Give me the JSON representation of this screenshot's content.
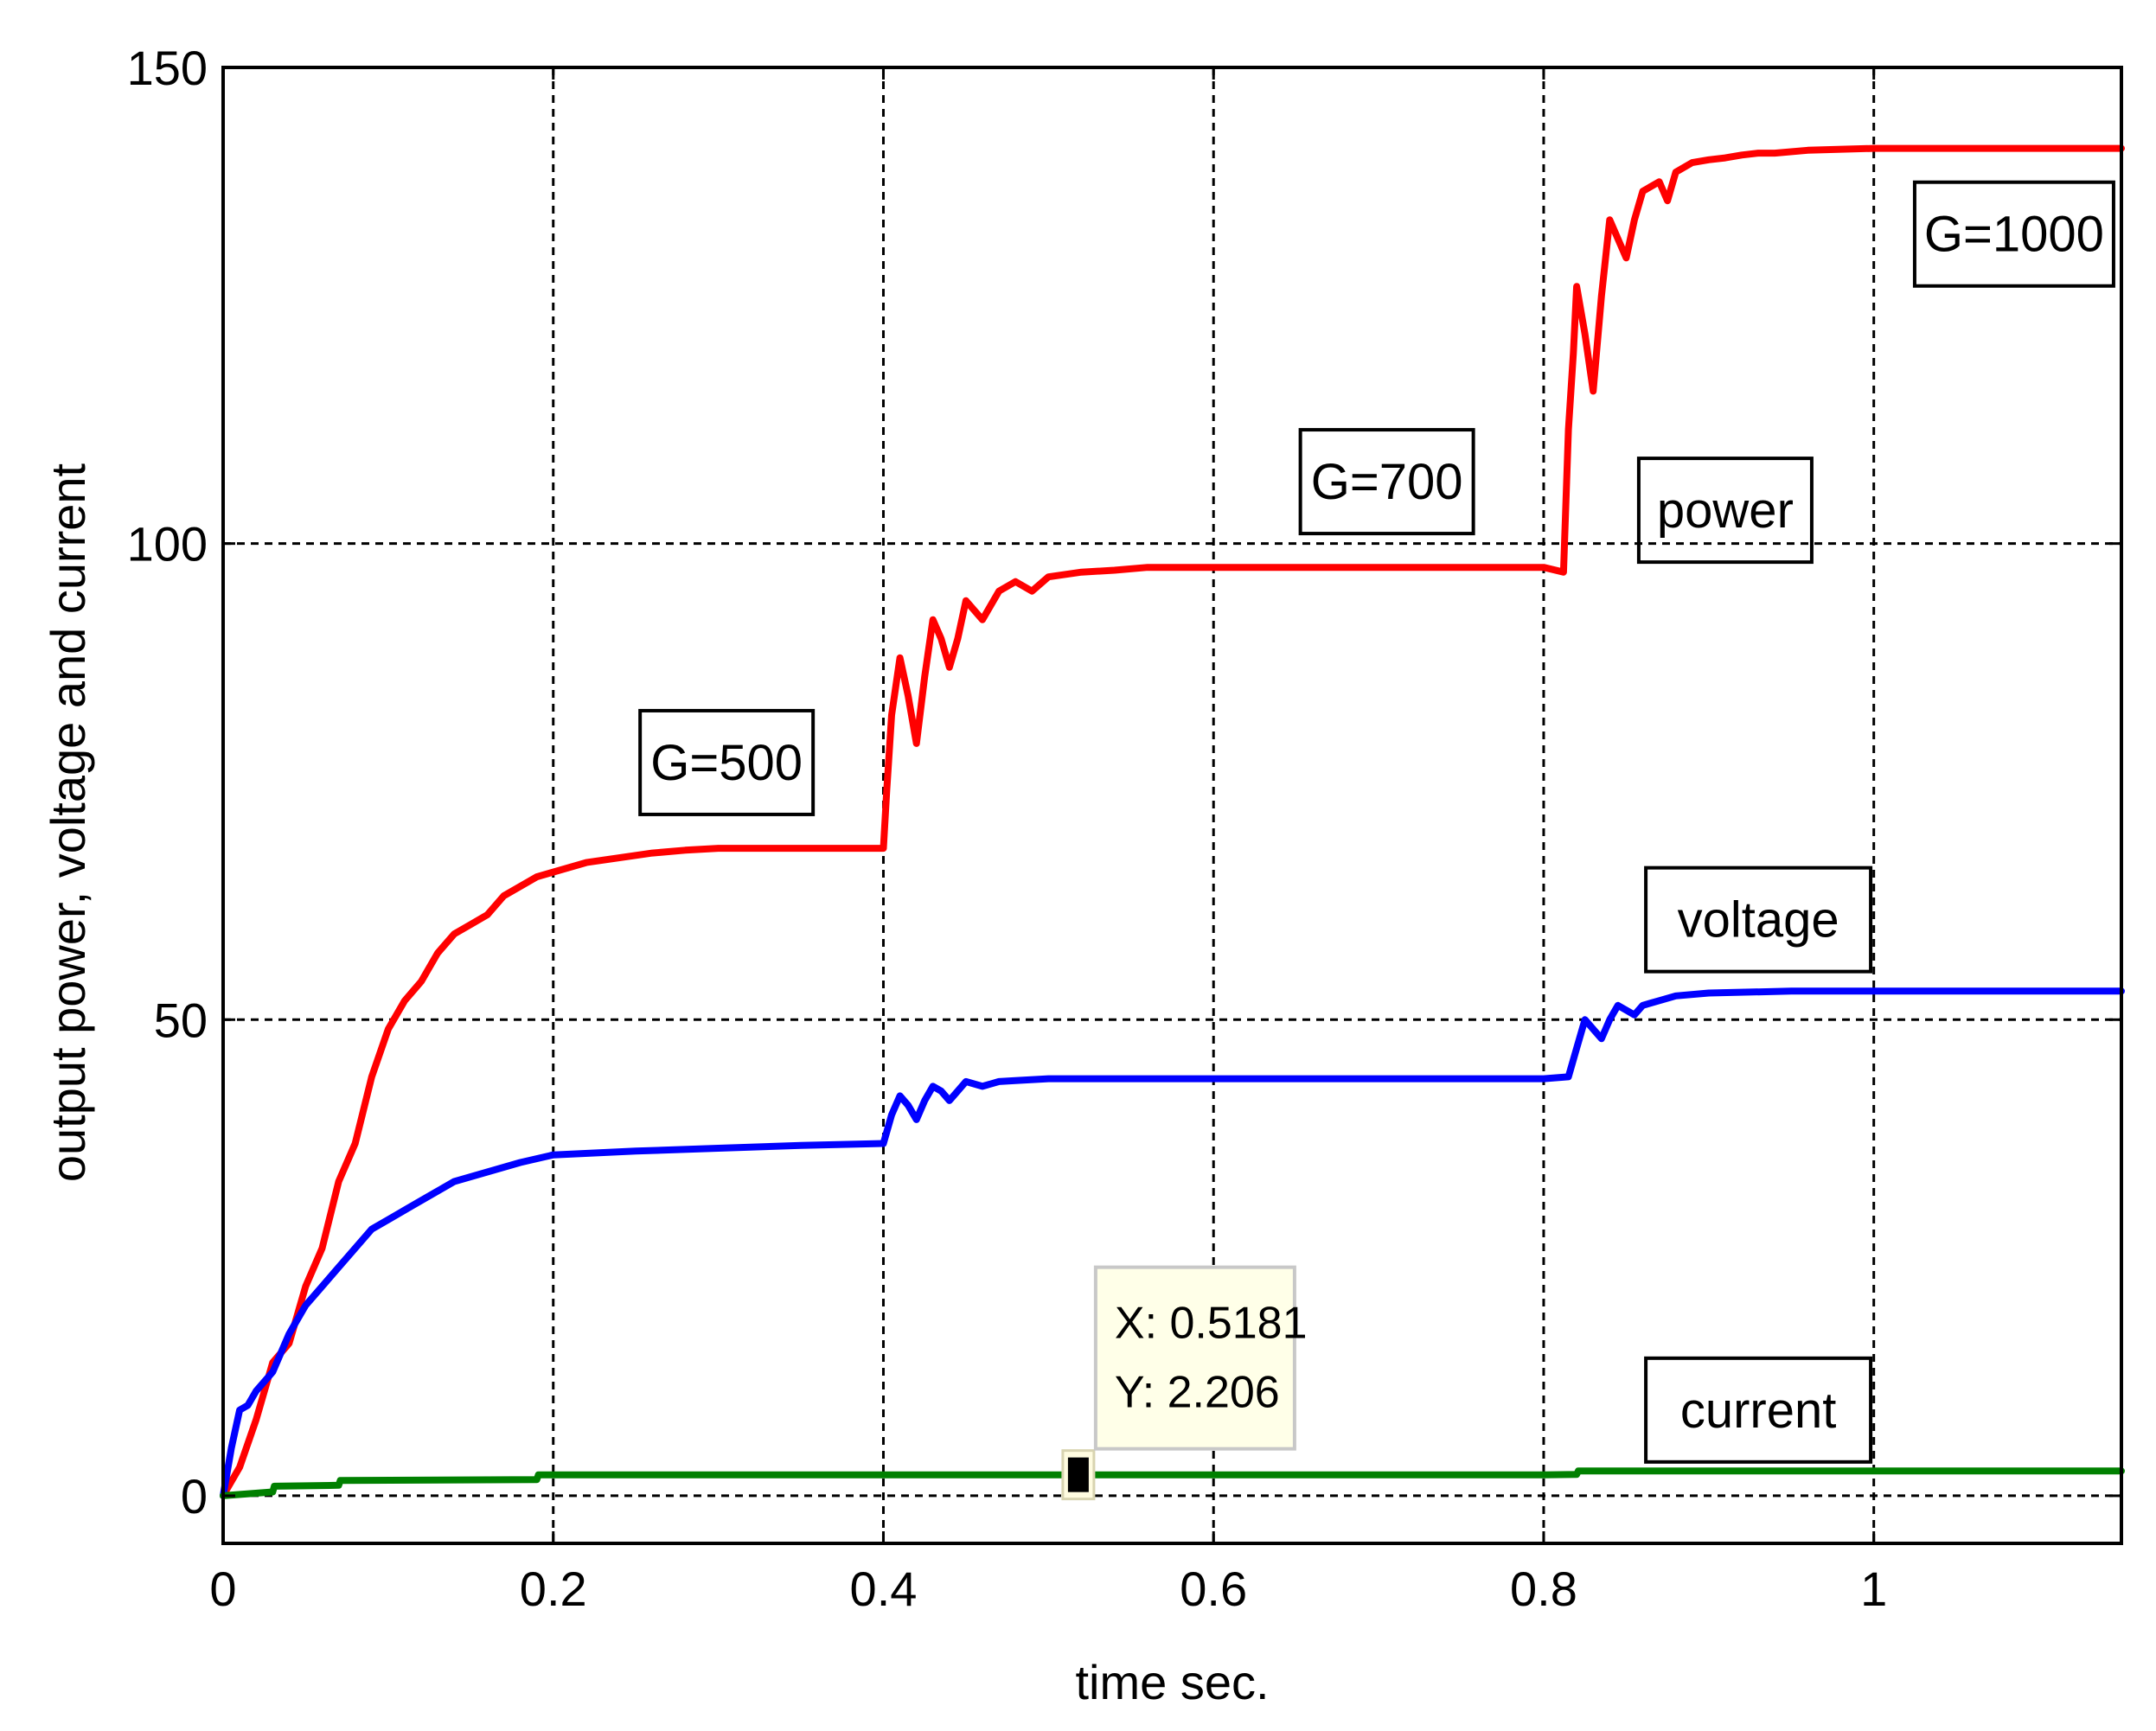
{
  "chart_data": {
    "type": "line",
    "xlabel": "time sec.",
    "ylabel": "output power, voltage and current",
    "xlim": [
      0,
      1.15
    ],
    "ylim": [
      -5,
      150
    ],
    "xticks": [
      0,
      0.2,
      0.4,
      0.6,
      0.8,
      1
    ],
    "xtick_labels": [
      "0",
      "0.2",
      "0.4",
      "0.6",
      "0.8",
      "1"
    ],
    "yticks": [
      0,
      50,
      100,
      150
    ],
    "ytick_labels": [
      "0",
      "50",
      "100",
      "150"
    ],
    "grid": true,
    "series": [
      {
        "key": "power",
        "color": "#ff0000",
        "x": [
          0,
          0.01,
          0.02,
          0.03,
          0.04,
          0.05,
          0.06,
          0.07,
          0.08,
          0.09,
          0.1,
          0.11,
          0.12,
          0.13,
          0.14,
          0.15,
          0.16,
          0.17,
          0.18,
          0.19,
          0.2,
          0.22,
          0.24,
          0.26,
          0.28,
          0.3,
          0.35,
          0.4,
          0.402,
          0.405,
          0.41,
          0.415,
          0.42,
          0.425,
          0.43,
          0.435,
          0.44,
          0.445,
          0.45,
          0.46,
          0.47,
          0.48,
          0.49,
          0.5,
          0.52,
          0.54,
          0.56,
          0.6,
          0.7,
          0.8,
          0.812,
          0.815,
          0.818,
          0.82,
          0.825,
          0.83,
          0.835,
          0.84,
          0.845,
          0.85,
          0.855,
          0.86,
          0.87,
          0.875,
          0.88,
          0.89,
          0.9,
          0.91,
          0.92,
          0.93,
          0.94,
          0.96,
          1.0,
          1.05,
          1.1,
          1.15
        ],
        "y": [
          0,
          3,
          8,
          14,
          16,
          22,
          26,
          33,
          37,
          44,
          49,
          52,
          54,
          57,
          59,
          60,
          61,
          63,
          64,
          65,
          65.5,
          66.5,
          67,
          67.5,
          67.8,
          68,
          68,
          68,
          74,
          82,
          88,
          84,
          79,
          86,
          92,
          90,
          87,
          90,
          94,
          92,
          95,
          96,
          95,
          96.5,
          97,
          97.2,
          97.5,
          97.5,
          97.5,
          97.5,
          97,
          112,
          120,
          127,
          122,
          116,
          126,
          134,
          132,
          130,
          134,
          137,
          138,
          136,
          139,
          140,
          140.3,
          140.5,
          140.8,
          141,
          141,
          141.3,
          141.5,
          141.5,
          141.5,
          141.5
        ]
      },
      {
        "key": "voltage",
        "color": "#0000ff",
        "x": [
          0,
          0.005,
          0.01,
          0.015,
          0.02,
          0.03,
          0.04,
          0.05,
          0.06,
          0.07,
          0.08,
          0.09,
          0.1,
          0.11,
          0.12,
          0.13,
          0.14,
          0.15,
          0.16,
          0.18,
          0.2,
          0.25,
          0.3,
          0.35,
          0.4,
          0.405,
          0.41,
          0.415,
          0.42,
          0.425,
          0.43,
          0.435,
          0.44,
          0.445,
          0.45,
          0.46,
          0.47,
          0.48,
          0.5,
          0.55,
          0.6,
          0.7,
          0.8,
          0.815,
          0.82,
          0.825,
          0.83,
          0.835,
          0.84,
          0.845,
          0.85,
          0.855,
          0.86,
          0.87,
          0.88,
          0.9,
          0.95,
          1.0,
          1.05,
          1.1,
          1.15
        ],
        "y": [
          0,
          5,
          9,
          9.5,
          11,
          13,
          17,
          20,
          22,
          24,
          26,
          28,
          29,
          30,
          31,
          32,
          33,
          33.5,
          34,
          35,
          35.8,
          36.2,
          36.5,
          36.8,
          37,
          40,
          42,
          41,
          39.5,
          41.5,
          43,
          42.5,
          41.5,
          42.5,
          43.5,
          43,
          43.5,
          43.6,
          43.8,
          43.8,
          43.8,
          43.8,
          43.8,
          44,
          47,
          50,
          49,
          48,
          50,
          51.5,
          51,
          50.5,
          51.5,
          52,
          52.5,
          52.8,
          53,
          53,
          53,
          53,
          53
        ]
      },
      {
        "key": "current",
        "color": "#008000",
        "x": [
          0,
          0.03,
          0.031,
          0.07,
          0.071,
          0.19,
          0.191,
          0.4,
          0.8,
          0.82,
          0.821,
          1.0,
          1.15
        ],
        "y": [
          0,
          0.4,
          1,
          1.1,
          1.6,
          1.7,
          2.2,
          2.2,
          2.2,
          2.25,
          2.6,
          2.6,
          2.6
        ]
      }
    ],
    "annotations": [
      {
        "text": "G=500",
        "x": 0.305,
        "y": 77
      },
      {
        "text": "G=700",
        "x": 0.705,
        "y": 106.5
      },
      {
        "text": "power",
        "x": 0.91,
        "y": 103.5
      },
      {
        "text": "G=1000",
        "x": 1.085,
        "y": 132.5
      },
      {
        "text": "voltage",
        "x": 0.93,
        "y": 60.5
      },
      {
        "text": "current",
        "x": 0.93,
        "y": 9
      }
    ],
    "datatip": {
      "x": 0.5181,
      "y": 2.206,
      "x_text": "X: 0.5181",
      "y_text": "Y: 2.206"
    }
  }
}
